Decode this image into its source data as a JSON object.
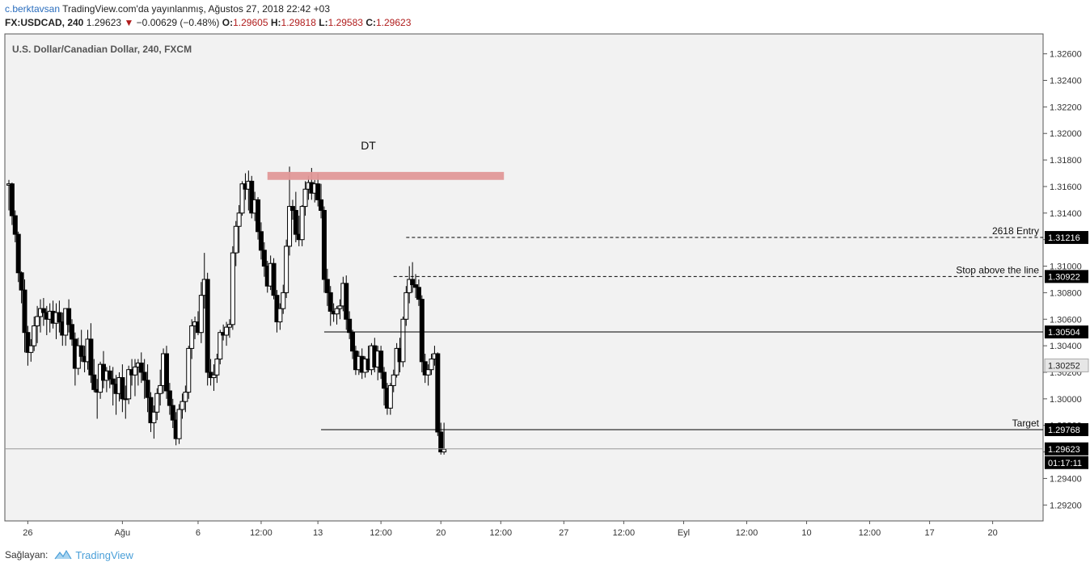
{
  "header": {
    "author": "c.berktavsan",
    "published": "TradingView.com'da yayınlanmış, Ağustos 27, 2018 22:42 +03",
    "symbol": "FX:USDCAD, 240",
    "last": "1.29623",
    "change_arrow": "▼",
    "change": "−0.00629 (−0.48%)",
    "o_label": "O:",
    "o_value": "1.29605",
    "h_label": "H:",
    "h_value": "1.29818",
    "l_label": "L:",
    "l_value": "1.29583",
    "c_label": "C:",
    "c_value": "1.29623"
  },
  "footer": {
    "provided_by": "Sağlayan:",
    "brand": "TradingView"
  },
  "colors": {
    "background": "#f2f2f2",
    "candle_up": "#ffffff",
    "candle_down": "#000000",
    "zone": "#e09898",
    "line": "#000000",
    "axis_label_bg": "#000000",
    "current_price_bg": "#e6e6e6"
  },
  "chart_data": {
    "type": "candlestick",
    "title": "U.S. Dollar/Canadian Dollar, 240, FXCM",
    "ylim": [
      1.2908,
      1.3275
    ],
    "y_ticks": [
      1.292,
      1.294,
      1.296,
      1.298,
      1.3,
      1.302,
      1.304,
      1.306,
      1.308,
      1.31,
      1.312,
      1.314,
      1.316,
      1.318,
      1.32,
      1.322,
      1.324,
      1.326
    ],
    "y_tick_labels": [
      "1.29200",
      "1.29400",
      "1.29600",
      "1.29800",
      "1.30000",
      "1.30200",
      "1.30400",
      "1.30600",
      "1.30800",
      "1.31000",
      "1.31200",
      "1.31400",
      "1.31600",
      "1.31800",
      "1.32000",
      "1.32200",
      "1.32400",
      "1.32600"
    ],
    "x_ticks": [
      {
        "label": "26",
        "i": 6
      },
      {
        "label": "Ağu",
        "i": 36
      },
      {
        "label": "6",
        "i": 60
      },
      {
        "label": "12:00",
        "i": 80
      },
      {
        "label": "13",
        "i": 98
      },
      {
        "label": "12:00",
        "i": 118
      },
      {
        "label": "20",
        "i": 137
      },
      {
        "label": "12:00",
        "i": 156
      },
      {
        "label": "27",
        "i": 176
      },
      {
        "label": "12:00",
        "i": 195
      },
      {
        "label": "Eyl",
        "i": 214
      },
      {
        "label": "12:00",
        "i": 234
      },
      {
        "label": "10",
        "i": 253
      },
      {
        "label": "12:00",
        "i": 273
      },
      {
        "label": "17",
        "i": 292
      },
      {
        "label": "20",
        "i": 312
      }
    ],
    "x_domain": [
      0,
      328
    ],
    "candles": [
      [
        1.3161,
        1.3165,
        1.3142,
        1.3162
      ],
      [
        1.3162,
        1.3163,
        1.3131,
        1.3138
      ],
      [
        1.3138,
        1.3142,
        1.3118,
        1.3124
      ],
      [
        1.3124,
        1.3126,
        1.3088,
        1.3095
      ],
      [
        1.3095,
        1.3096,
        1.3072,
        1.3082
      ],
      [
        1.3082,
        1.309,
        1.3035,
        1.305
      ],
      [
        1.305,
        1.3055,
        1.3025,
        1.3035
      ],
      [
        1.3035,
        1.3045,
        1.3028,
        1.304
      ],
      [
        1.304,
        1.3062,
        1.3036,
        1.3055
      ],
      [
        1.3055,
        1.307,
        1.3042,
        1.3062
      ],
      [
        1.3062,
        1.3075,
        1.305,
        1.3068
      ],
      [
        1.3068,
        1.3076,
        1.3055,
        1.3065
      ],
      [
        1.3065,
        1.307,
        1.3048,
        1.306
      ],
      [
        1.306,
        1.3072,
        1.305,
        1.3066
      ],
      [
        1.3066,
        1.3074,
        1.3053,
        1.3057
      ],
      [
        1.3057,
        1.3072,
        1.3045,
        1.3065
      ],
      [
        1.3065,
        1.3074,
        1.305,
        1.3058
      ],
      [
        1.3058,
        1.3065,
        1.304,
        1.3048
      ],
      [
        1.3048,
        1.3068,
        1.304,
        1.3068
      ],
      [
        1.3068,
        1.3075,
        1.305,
        1.3056
      ],
      [
        1.3056,
        1.306,
        1.304,
        1.3045
      ],
      [
        1.3045,
        1.305,
        1.301,
        1.3023
      ],
      [
        1.3023,
        1.3046,
        1.3018,
        1.304
      ],
      [
        1.304,
        1.3052,
        1.3028,
        1.3032
      ],
      [
        1.3032,
        1.304,
        1.302,
        1.3028
      ],
      [
        1.3028,
        1.3052,
        1.3022,
        1.3045
      ],
      [
        1.3045,
        1.3057,
        1.3012,
        1.3018
      ],
      [
        1.3018,
        1.303,
        1.3005,
        1.3007
      ],
      [
        1.3007,
        1.3015,
        1.2985,
        1.3005
      ],
      [
        1.3005,
        1.3028,
        1.3,
        1.3026
      ],
      [
        1.3026,
        1.3036,
        1.3008,
        1.3014
      ],
      [
        1.3014,
        1.3024,
        1.3005,
        1.3021
      ],
      [
        1.3021,
        1.3025,
        1.3008,
        1.3015
      ],
      [
        1.3015,
        1.3024,
        1.2995,
        1.3011
      ],
      [
        1.3011,
        1.3018,
        1.2988,
        1.3004
      ],
      [
        1.3004,
        1.302,
        1.2998,
        1.3016
      ],
      [
        1.3016,
        1.3026,
        1.299,
        1.3
      ],
      [
        1.3,
        1.301,
        1.2985,
        1.3
      ],
      [
        1.3,
        1.3025,
        1.2996,
        1.3022
      ],
      [
        1.3022,
        1.303,
        1.301,
        1.3018
      ],
      [
        1.3018,
        1.303,
        1.3002,
        1.3024
      ],
      [
        1.3024,
        1.303,
        1.301,
        1.3027
      ],
      [
        1.3027,
        1.3035,
        1.3012,
        1.302
      ],
      [
        1.302,
        1.303,
        1.3,
        1.3014
      ],
      [
        1.3014,
        1.3026,
        1.299,
        1.3001
      ],
      [
        1.3001,
        1.3005,
        1.2975,
        1.2982
      ],
      [
        1.2982,
        1.2995,
        1.297,
        1.299
      ],
      [
        1.299,
        1.3008,
        1.2984,
        1.3004
      ],
      [
        1.3004,
        1.3022,
        1.2995,
        1.301
      ],
      [
        1.301,
        1.3038,
        1.3004,
        1.3034
      ],
      [
        1.3034,
        1.304,
        1.3,
        1.3006
      ],
      [
        1.3006,
        1.3012,
        1.2988,
        1.2995
      ],
      [
        1.2995,
        1.3,
        1.2978,
        1.2984
      ],
      [
        1.2984,
        1.299,
        1.2965,
        1.297
      ],
      [
        1.297,
        1.2996,
        1.2966,
        1.2992
      ],
      [
        1.2992,
        1.3004,
        1.2985,
        1.2998
      ],
      [
        1.2998,
        1.301,
        1.299,
        1.3005
      ],
      [
        1.3005,
        1.304,
        1.3,
        1.3038
      ],
      [
        1.3038,
        1.306,
        1.303,
        1.3055
      ],
      [
        1.3055,
        1.3062,
        1.3045,
        1.3058
      ],
      [
        1.3058,
        1.3066,
        1.3048,
        1.305
      ],
      [
        1.305,
        1.3088,
        1.3042,
        1.3078
      ],
      [
        1.3078,
        1.311,
        1.3068,
        1.309
      ],
      [
        1.309,
        1.3095,
        1.301,
        1.302
      ],
      [
        1.302,
        1.303,
        1.301,
        1.3016
      ],
      [
        1.3016,
        1.3026,
        1.3006,
        1.3018
      ],
      [
        1.3018,
        1.3034,
        1.3012,
        1.303
      ],
      [
        1.303,
        1.3052,
        1.3026,
        1.305
      ],
      [
        1.305,
        1.3056,
        1.3044,
        1.3048
      ],
      [
        1.3048,
        1.3058,
        1.304,
        1.3054
      ],
      [
        1.3054,
        1.306,
        1.3046,
        1.3056
      ],
      [
        1.3056,
        1.3115,
        1.3052,
        1.311
      ],
      [
        1.311,
        1.3134,
        1.31,
        1.313
      ],
      [
        1.313,
        1.3146,
        1.311,
        1.314
      ],
      [
        1.314,
        1.3164,
        1.3138,
        1.3162
      ],
      [
        1.3162,
        1.317,
        1.315,
        1.3158
      ],
      [
        1.3158,
        1.3172,
        1.3142,
        1.3164
      ],
      [
        1.3164,
        1.3168,
        1.3136,
        1.314
      ],
      [
        1.314,
        1.3156,
        1.3134,
        1.315
      ],
      [
        1.315,
        1.3152,
        1.312,
        1.3126
      ],
      [
        1.3126,
        1.3133,
        1.3105,
        1.3112
      ],
      [
        1.3112,
        1.3118,
        1.3092,
        1.31
      ],
      [
        1.31,
        1.3104,
        1.308,
        1.3085
      ],
      [
        1.3085,
        1.3108,
        1.3082,
        1.3102
      ],
      [
        1.3102,
        1.3106,
        1.3075,
        1.3078
      ],
      [
        1.3078,
        1.3082,
        1.305,
        1.3058
      ],
      [
        1.3058,
        1.3072,
        1.3052,
        1.3068
      ],
      [
        1.3068,
        1.3086,
        1.3064,
        1.308
      ],
      [
        1.308,
        1.312,
        1.3076,
        1.3115
      ],
      [
        1.3115,
        1.3175,
        1.3108,
        1.3145
      ],
      [
        1.3145,
        1.315,
        1.3135,
        1.3142
      ],
      [
        1.3142,
        1.3156,
        1.3118,
        1.3124
      ],
      [
        1.3124,
        1.3138,
        1.3115,
        1.312
      ],
      [
        1.312,
        1.3146,
        1.3115,
        1.3145
      ],
      [
        1.3145,
        1.3164,
        1.3138,
        1.3158
      ],
      [
        1.3158,
        1.3168,
        1.315,
        1.3163
      ],
      [
        1.3163,
        1.3174,
        1.315,
        1.3155
      ],
      [
        1.3155,
        1.3165,
        1.3148,
        1.3162
      ],
      [
        1.3162,
        1.317,
        1.3145,
        1.315
      ],
      [
        1.315,
        1.3162,
        1.3136,
        1.3142
      ],
      [
        1.3142,
        1.3145,
        1.308,
        1.309
      ],
      [
        1.309,
        1.3098,
        1.307,
        1.308
      ],
      [
        1.308,
        1.3085,
        1.3055,
        1.3066
      ],
      [
        1.3066,
        1.3072,
        1.3058,
        1.3064
      ],
      [
        1.3064,
        1.307,
        1.3056,
        1.3068
      ],
      [
        1.3068,
        1.3075,
        1.306,
        1.307
      ],
      [
        1.307,
        1.3092,
        1.3066,
        1.3087
      ],
      [
        1.3087,
        1.3093,
        1.3052,
        1.306
      ],
      [
        1.306,
        1.3066,
        1.3045,
        1.305
      ],
      [
        1.305,
        1.3052,
        1.303,
        1.3036
      ],
      [
        1.3036,
        1.304,
        1.3018,
        1.3022
      ],
      [
        1.3022,
        1.3036,
        1.3018,
        1.3032
      ],
      [
        1.3032,
        1.3038,
        1.3015,
        1.302
      ],
      [
        1.302,
        1.3032,
        1.3016,
        1.303
      ],
      [
        1.303,
        1.304,
        1.302,
        1.3022
      ],
      [
        1.3022,
        1.3042,
        1.3018,
        1.304
      ],
      [
        1.304,
        1.3046,
        1.302,
        1.3024
      ],
      [
        1.3024,
        1.304,
        1.3014,
        1.3036
      ],
      [
        1.3036,
        1.304,
        1.3015,
        1.302
      ],
      [
        1.302,
        1.3024,
        1.2995,
        1.3008
      ],
      [
        1.3008,
        1.3012,
        1.2988,
        1.2993
      ],
      [
        1.2993,
        1.3012,
        1.2988,
        1.301
      ],
      [
        1.301,
        1.3022,
        1.3005,
        1.3018
      ],
      [
        1.3018,
        1.3042,
        1.3016,
        1.3038
      ],
      [
        1.3038,
        1.3046,
        1.302,
        1.3028
      ],
      [
        1.3028,
        1.3062,
        1.3024,
        1.306
      ],
      [
        1.306,
        1.3085,
        1.3055,
        1.308
      ],
      [
        1.308,
        1.31,
        1.3072,
        1.309
      ],
      [
        1.309,
        1.3103,
        1.308,
        1.3086
      ],
      [
        1.3086,
        1.3094,
        1.3076,
        1.3084
      ],
      [
        1.3084,
        1.309,
        1.307,
        1.3075
      ],
      [
        1.3075,
        1.3078,
        1.302,
        1.3028
      ],
      [
        1.3028,
        1.3034,
        1.3012,
        1.3018
      ],
      [
        1.3018,
        1.3026,
        1.301,
        1.3022
      ],
      [
        1.3022,
        1.3034,
        1.3018,
        1.303
      ],
      [
        1.303,
        1.304,
        1.3025,
        1.3034
      ],
      [
        1.3034,
        1.3035,
        1.2972,
        1.2975
      ],
      [
        1.2975,
        1.2982,
        1.2958,
        1.296
      ],
      [
        1.296,
        1.2982,
        1.2958,
        1.2962
      ]
    ],
    "levels": [
      {
        "label": "2618 Entry",
        "value": 1.31216,
        "value_label": "1.31216",
        "style": "dashed",
        "x_start": 126
      },
      {
        "label": "Stop above the line",
        "value": 1.30922,
        "value_label": "1.30922",
        "style": "dashed",
        "x_start": 122
      },
      {
        "label": "",
        "value": 1.30504,
        "value_label": "1.30504",
        "style": "solid",
        "x_start": 100
      },
      {
        "label": "Target",
        "value": 1.29768,
        "value_label": "1.29768",
        "style": "solid",
        "x_start": 99
      }
    ],
    "current_price": {
      "value": 1.29623,
      "label": "1.29623",
      "countdown": "01:17:11"
    },
    "highlight_price": {
      "value": 1.30252,
      "label": "1.30252"
    },
    "zone": {
      "y_low": 1.3165,
      "y_high": 1.3171,
      "x_start": 82,
      "x_end": 157
    },
    "annotation": {
      "text": "DT",
      "x": 114,
      "y": 1.3188
    }
  }
}
